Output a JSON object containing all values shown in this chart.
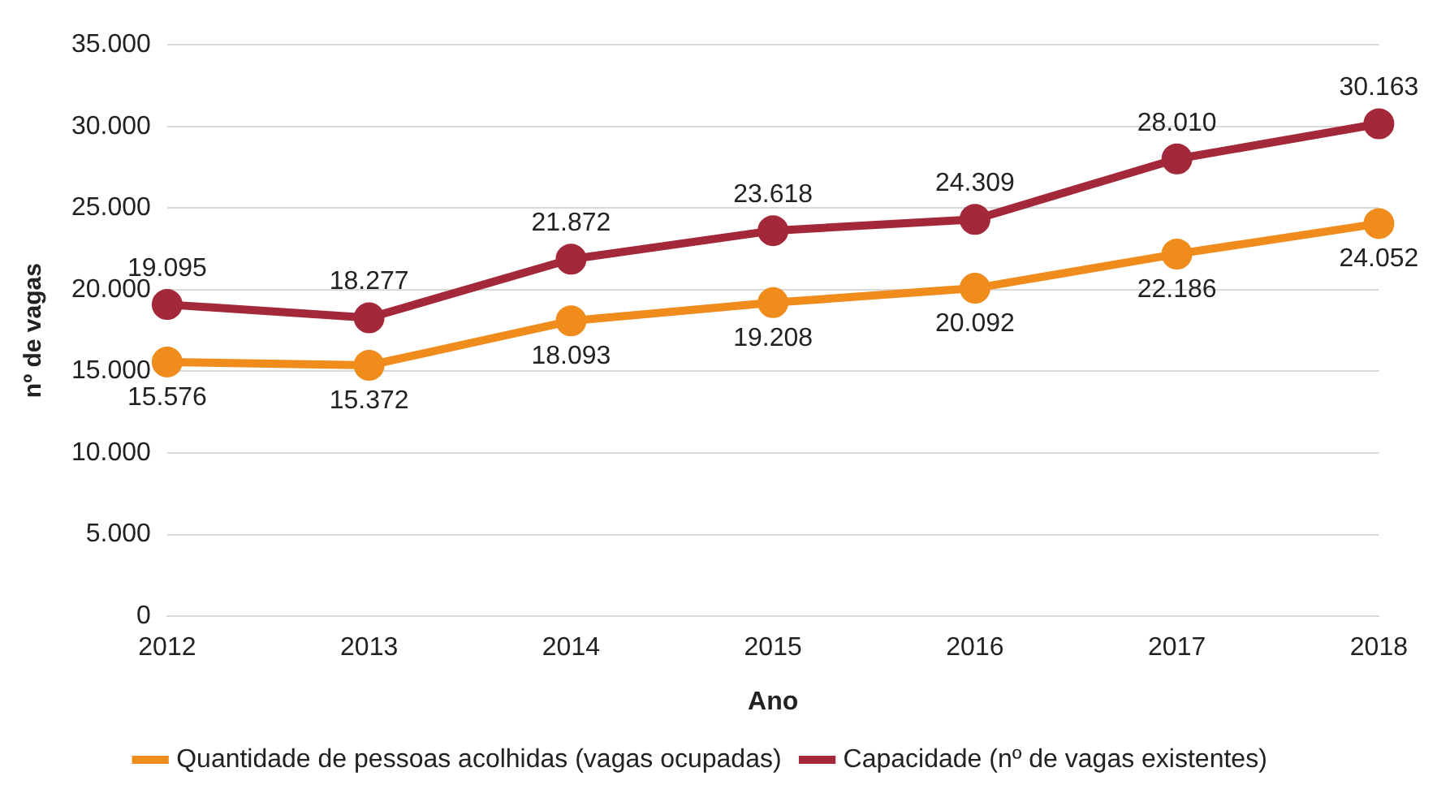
{
  "chart_data": {
    "type": "line",
    "xlabel": "Ano",
    "ylabel": "nº de vagas",
    "categories": [
      "2012",
      "2013",
      "2014",
      "2015",
      "2016",
      "2017",
      "2018"
    ],
    "series": [
      {
        "name": "Quantidade de pessoas acolhidas (vagas ocupadas)",
        "color": "#f08c1c",
        "values": [
          15576,
          15372,
          18093,
          19208,
          20092,
          22186,
          24052
        ],
        "value_labels": [
          "15.576",
          "15.372",
          "18.093",
          "19.208",
          "20.092",
          "22.186",
          "24.052"
        ]
      },
      {
        "name": "Capacidade (nº de vagas existentes)",
        "color": "#a3283a",
        "values": [
          19095,
          18277,
          21872,
          23618,
          24309,
          28010,
          30163
        ],
        "value_labels": [
          "19.095",
          "18.277",
          "21.872",
          "23.618",
          "24.309",
          "28.010",
          "30.163"
        ]
      }
    ],
    "ylim": [
      0,
      35000
    ],
    "yticks": [
      {
        "value": 0,
        "label": "0"
      },
      {
        "value": 5000,
        "label": "5.000"
      },
      {
        "value": 10000,
        "label": "10.000"
      },
      {
        "value": 15000,
        "label": "15.000"
      },
      {
        "value": 20000,
        "label": "20.000"
      },
      {
        "value": 25000,
        "label": "25.000"
      },
      {
        "value": 30000,
        "label": "30.000"
      },
      {
        "value": 35000,
        "label": "35.000"
      }
    ],
    "grid": "y",
    "legend": "bottom",
    "marker": "circle",
    "line_style": "solid"
  }
}
